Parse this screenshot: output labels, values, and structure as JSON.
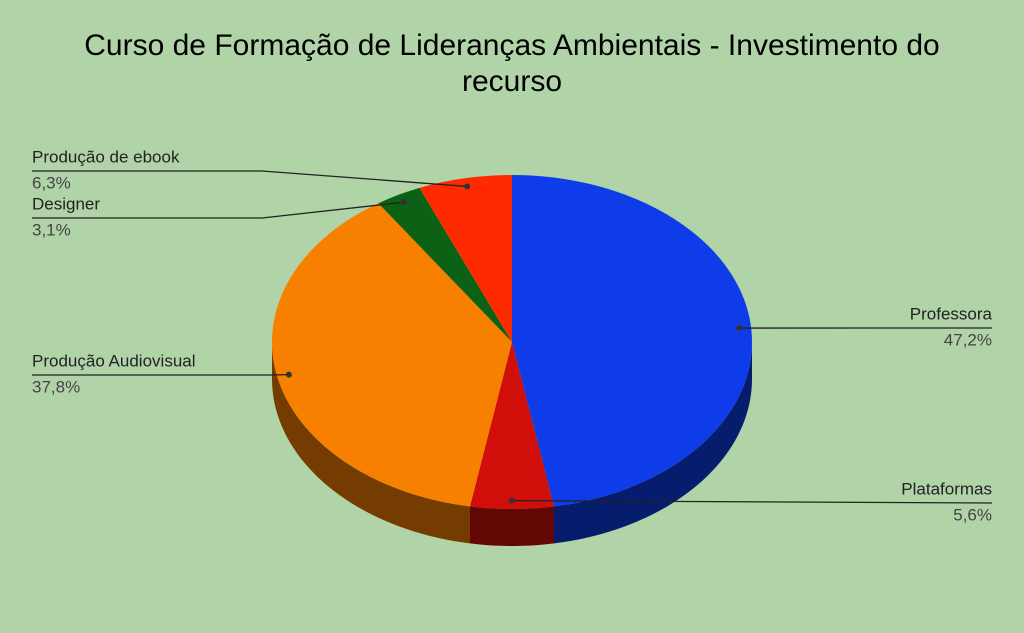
{
  "chart_data": {
    "type": "pie",
    "title": "Curso de Formação de Lideranças Ambientais - Investimento do recurso",
    "categories": [
      "Professora",
      "Plataformas",
      "Produção Audiovisual",
      "Designer",
      "Produção de ebook"
    ],
    "values": [
      47.2,
      5.6,
      37.8,
      3.1,
      6.3
    ],
    "value_labels": [
      "47,2%",
      "5,6%",
      "37,8%",
      "3,1%",
      "6,3%"
    ],
    "colors": [
      "#0e3ce8",
      "#d10f0a",
      "#f88000",
      "#0b6114",
      "#ff2a00"
    ]
  }
}
